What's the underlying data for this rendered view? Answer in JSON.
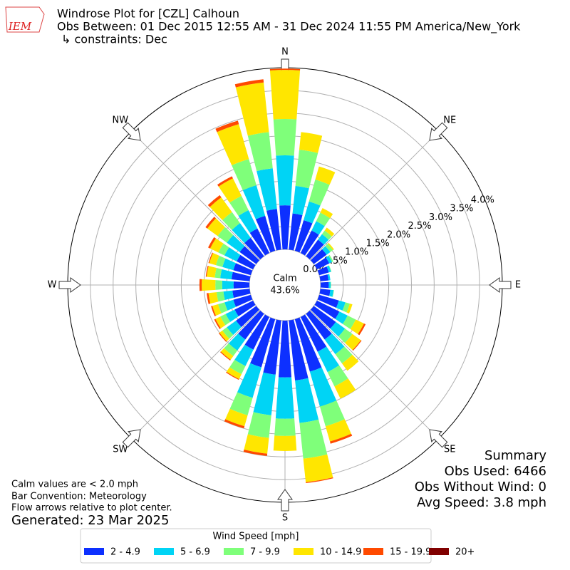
{
  "chart_data": {
    "type": "windrose",
    "logo_text": "IEM",
    "title": "Windrose Plot for [CZL] Calhoun",
    "subtitle": "Obs Between: 01 Dec 2015 12:55 AM - 31 Dec 2024 11:55 PM America/New_York",
    "constraints": "↳ constraints: Dec",
    "calm_label": "Calm",
    "calm_value": "43.6%",
    "notes": [
      "Calm values are < 2.0 mph",
      "Bar Convention: Meteorology",
      "Flow arrows relative to plot center."
    ],
    "generated": "Generated: 23 Mar 2025",
    "summary": [
      "Summary",
      "Obs Used: 6466",
      "Obs Without Wind: 0",
      "Avg Speed: 3.8 mph"
    ],
    "legend_title": "Wind Speed [mph]",
    "directions": [
      0,
      10,
      20,
      30,
      40,
      50,
      60,
      70,
      80,
      90,
      100,
      110,
      120,
      130,
      140,
      150,
      160,
      170,
      180,
      190,
      200,
      210,
      220,
      230,
      240,
      250,
      260,
      270,
      280,
      290,
      300,
      310,
      320,
      330,
      340,
      350
    ],
    "theta_ticks": [
      {
        "value": 0,
        "label": "N"
      },
      {
        "value": 45,
        "label": "NE"
      },
      {
        "value": 90,
        "label": "E"
      },
      {
        "value": 135,
        "label": "SE"
      },
      {
        "value": 180,
        "label": "S"
      },
      {
        "value": 225,
        "label": "SW"
      },
      {
        "value": 270,
        "label": "W"
      },
      {
        "value": 315,
        "label": "NW"
      }
    ],
    "rlim": [
      0,
      4
    ],
    "rticks": [
      {
        "value": 0,
        "label": "0.0%"
      },
      {
        "value": 0.5,
        "label": "0.5%"
      },
      {
        "value": 1,
        "label": "1.0%"
      },
      {
        "value": 1.5,
        "label": "1.5%"
      },
      {
        "value": 2,
        "label": "2.0%"
      },
      {
        "value": 2.5,
        "label": "2.5%"
      },
      {
        "value": 3,
        "label": "3.0%"
      },
      {
        "value": 3.5,
        "label": "3.5%"
      },
      {
        "value": 4,
        "label": "4.0%"
      }
    ],
    "series": [
      {
        "name": "2 - 4.9",
        "color": "#0d30ff",
        "values": [
          0.97,
          0.8,
          0.7,
          0.55,
          0.45,
          0.35,
          0.3,
          0.22,
          0.18,
          0.18,
          0.22,
          0.45,
          0.55,
          0.6,
          0.7,
          0.85,
          1.2,
          1.33,
          1.25,
          1.2,
          1.1,
          0.8,
          0.7,
          0.55,
          0.45,
          0.4,
          0.38,
          0.35,
          0.4,
          0.4,
          0.4,
          0.45,
          0.5,
          0.6,
          0.8,
          0.9
        ]
      },
      {
        "name": "5 - 6.9",
        "color": "#00d4f5",
        "values": [
          1.1,
          0.61,
          0.43,
          0.23,
          0.15,
          0.1,
          0.07,
          0.05,
          0.04,
          0.04,
          0.07,
          0.15,
          0.2,
          0.25,
          0.4,
          0.5,
          0.8,
          0.94,
          0.91,
          0.9,
          0.7,
          0.4,
          0.3,
          0.25,
          0.22,
          0.2,
          0.2,
          0.25,
          0.25,
          0.25,
          0.3,
          0.35,
          0.4,
          0.45,
          0.7,
          0.9
        ]
      },
      {
        "name": "7 - 9.9",
        "color": "#7fff7a",
        "values": [
          0.8,
          0.8,
          0.5,
          0.21,
          0.1,
          0.07,
          0.03,
          0.01,
          0,
          0.01,
          0.01,
          0.1,
          0.2,
          0.2,
          0.25,
          0.35,
          0.45,
          0.79,
          0.38,
          0.5,
          0.4,
          0.2,
          0.15,
          0.12,
          0.13,
          0.15,
          0.15,
          0.15,
          0.12,
          0.15,
          0.15,
          0.25,
          0.3,
          0.35,
          0.6,
          0.8
        ]
      },
      {
        "name": "10 - 14.9",
        "color": "#ffe600",
        "values": [
          1.08,
          0.39,
          0.3,
          0.11,
          0.08,
          0.03,
          0,
          0,
          0,
          0,
          0,
          0.06,
          0.2,
          0.23,
          0.2,
          0.3,
          0.35,
          0.52,
          0.33,
          0.35,
          0.25,
          0.12,
          0.1,
          0.08,
          0.12,
          0.13,
          0.18,
          0.3,
          0.18,
          0.15,
          0.2,
          0.28,
          0.4,
          0.43,
          0.8,
          1.1
        ]
      },
      {
        "name": "15 - 19.9",
        "color": "#ff4a00",
        "values": [
          0.03,
          0,
          0,
          0,
          0,
          0,
          0,
          0,
          0,
          0,
          0,
          0,
          0.04,
          0.02,
          0,
          0,
          0.05,
          0.02,
          0,
          0.05,
          0.05,
          0.02,
          0.02,
          0.02,
          0.03,
          0.03,
          0.04,
          0.05,
          0.02,
          0.02,
          0.05,
          0.05,
          0.06,
          0.05,
          0.08,
          0.07
        ]
      },
      {
        "name": "20+",
        "color": "#800000",
        "values": [
          0,
          0,
          0,
          0,
          0,
          0,
          0,
          0,
          0,
          0,
          0,
          0,
          0,
          0,
          0,
          0,
          0,
          0,
          0,
          0,
          0,
          0,
          0,
          0,
          0,
          0,
          0,
          0,
          0,
          0,
          0,
          0,
          0,
          0,
          0,
          0
        ]
      }
    ]
  }
}
